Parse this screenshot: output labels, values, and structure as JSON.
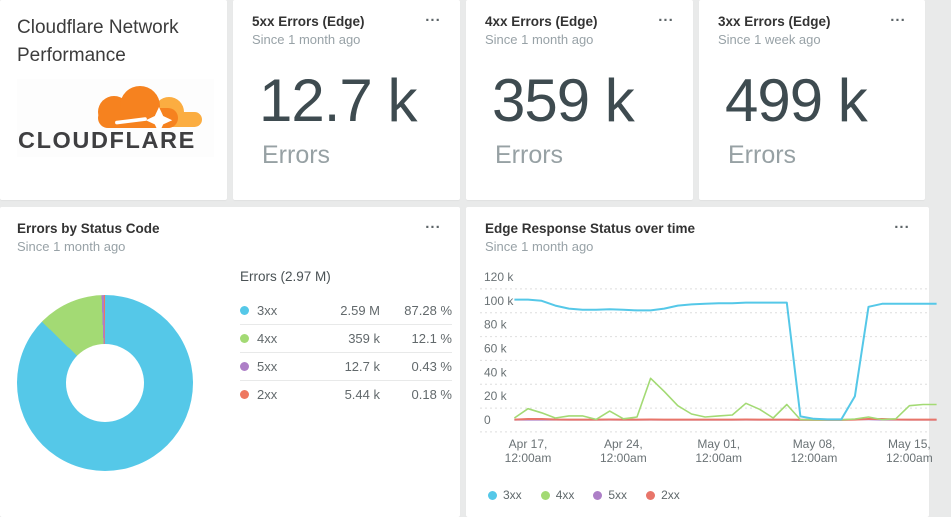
{
  "title_card": {
    "title_line1": "Cloudflare Network",
    "title_line2": "Performance",
    "logo_text": "CLOUDFLARE",
    "logo_colors": {
      "cloud_main": "#f6821f",
      "cloud_light": "#fbad41",
      "text": "#3f3f41"
    }
  },
  "stat_cards": [
    {
      "title": "5xx Errors (Edge)",
      "subtitle": "Since 1 month ago",
      "value": "12.7 k",
      "label": "Errors",
      "menu_icon": "..."
    },
    {
      "title": "4xx Errors (Edge)",
      "subtitle": "Since 1 month ago",
      "value": "359 k",
      "label": "Errors",
      "menu_icon": "..."
    },
    {
      "title": "3xx Errors (Edge)",
      "subtitle": "Since 1 week ago",
      "value": "499 k",
      "label": "Errors",
      "menu_icon": "..."
    }
  ],
  "donut_card": {
    "title": "Errors by Status Code",
    "subtitle": "Since 1 month ago",
    "menu_icon": "...",
    "chart_data": {
      "type": "pie",
      "donut": true,
      "title": "Errors by Status Code",
      "total_label": "Errors (2.97 M)",
      "slices": [
        {
          "name": "3xx",
          "value": 2590000,
          "value_label": "2.59 M",
          "percent": 87.28,
          "percent_label": "87.28 %",
          "color": "#55c8e8"
        },
        {
          "name": "4xx",
          "value": 359000,
          "value_label": "359 k",
          "percent": 12.1,
          "percent_label": "12.1 %",
          "color": "#a3da74"
        },
        {
          "name": "5xx",
          "value": 12700,
          "value_label": "12.7 k",
          "percent": 0.43,
          "percent_label": "0.43 %",
          "color": "#ad7fc7"
        },
        {
          "name": "2xx",
          "value": 5440,
          "value_label": "5.44 k",
          "percent": 0.18,
          "percent_label": "0.18 %",
          "color": "#ee7860"
        }
      ]
    }
  },
  "timeseries_card": {
    "title": "Edge Response Status over time",
    "subtitle": "Since 1 month ago",
    "menu_icon": "...",
    "chart_data": {
      "type": "line",
      "unit": "errors per day (thousands)",
      "ylim_k": [
        0,
        120
      ],
      "y_tick_step_k": 20,
      "y_tick_labels": [
        "0",
        "20 k",
        "40 k",
        "60 k",
        "80 k",
        "100 k",
        "120 k"
      ],
      "grid": "dashed",
      "x_ticks": [
        {
          "day": 1,
          "lines": [
            "Apr 17,",
            "12:00am"
          ]
        },
        {
          "day": 8,
          "lines": [
            "Apr 24,",
            "12:00am"
          ]
        },
        {
          "day": 15,
          "lines": [
            "May 01,",
            "12:00am"
          ]
        },
        {
          "day": 22,
          "lines": [
            "May 08,",
            "12:00am"
          ]
        },
        {
          "day": 29,
          "lines": [
            "May 15,",
            "12:00am"
          ]
        }
      ],
      "series": [
        {
          "name": "3xx",
          "color": "#55c8e8",
          "values_k": [
            101,
            101,
            100,
            96,
            93.5,
            92.5,
            92.5,
            93,
            92.5,
            92,
            92,
            93.5,
            96,
            97,
            97.5,
            98,
            98,
            98.5,
            98.5,
            98.5,
            98.5,
            3,
            1,
            0.5,
            0.5,
            20,
            95,
            97.5,
            97.5,
            97.5,
            97.5,
            97.5
          ]
        },
        {
          "name": "4xx",
          "color": "#a3da74",
          "values_k": [
            1.7,
            9.5,
            6,
            1.7,
            3.4,
            3.4,
            0.5,
            7.5,
            1,
            2.5,
            35,
            24,
            12,
            5,
            2.5,
            3.4,
            4.2,
            14,
            9,
            1.7,
            13,
            0.3,
            0.2,
            0.2,
            0.2,
            0.8,
            2.5,
            0.3,
            1,
            12,
            13,
            13
          ]
        },
        {
          "name": "5xx",
          "color": "#ad7fc7",
          "values_k": [
            0.15,
            0.15,
            0.15,
            0.15,
            0.15,
            0.15,
            0.15,
            0.15,
            0.15,
            0.15,
            0.15,
            0.15,
            0.15,
            0.15,
            0.15,
            0.15,
            0.15,
            0.15,
            0.15,
            0.15,
            0.15,
            0.1,
            0.1,
            0.1,
            0.1,
            0.5,
            0.5,
            0.15,
            0.15,
            0.15,
            0.15,
            0.15
          ]
        },
        {
          "name": "2xx",
          "color": "#e8756a",
          "values_k": [
            0.3,
            0.8,
            0.8,
            0.4,
            0.3,
            0.3,
            0.3,
            0.4,
            0.3,
            0.3,
            0.4,
            0.3,
            0.3,
            0.3,
            0.3,
            0.3,
            0.3,
            0.4,
            0.3,
            0.3,
            0.3,
            0.2,
            0.1,
            0.1,
            0.1,
            0.3,
            0.8,
            0.8,
            0.4,
            0.3,
            0.3,
            0.3
          ]
        }
      ],
      "legend": [
        "3xx",
        "4xx",
        "5xx",
        "2xx"
      ]
    }
  }
}
